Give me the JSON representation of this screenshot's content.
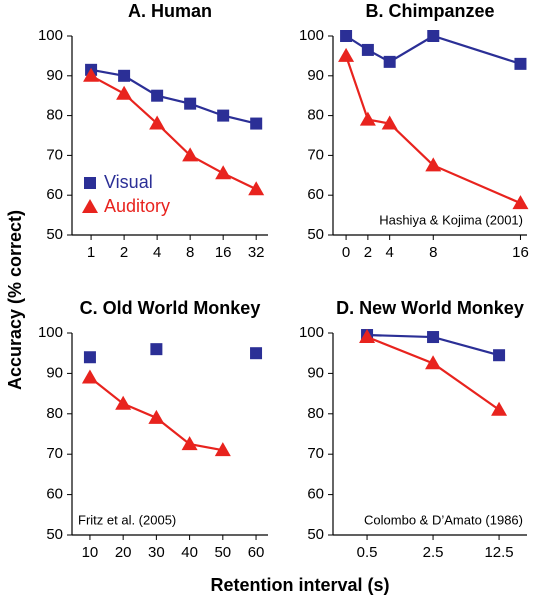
{
  "chart_data": [
    {
      "type": "line",
      "title": "A. Human",
      "xscale": "log",
      "x": [
        1,
        2,
        4,
        8,
        16,
        32
      ],
      "xlim": [
        0.67,
        41
      ],
      "xticks": [
        1,
        2,
        4,
        8,
        16,
        32
      ],
      "ylim": [
        50,
        100
      ],
      "yticks": [
        50,
        60,
        70,
        80,
        90,
        100
      ],
      "legend": "lower left",
      "series": [
        {
          "name": "Visual",
          "color": "#2b2f96",
          "marker": "square",
          "values": [
            91.5,
            90,
            85,
            83,
            80,
            78
          ]
        },
        {
          "name": "Auditory",
          "color": "#e8231e",
          "marker": "triangle",
          "values": [
            90,
            85.5,
            78,
            70,
            65.5,
            61.5
          ]
        }
      ]
    },
    {
      "type": "line",
      "title": "B. Chimpanzee",
      "xscale": "linear",
      "x": [
        0,
        2,
        4,
        8,
        16
      ],
      "xlim": [
        -1.2,
        16.6
      ],
      "xticks": [
        0,
        2,
        4,
        8,
        16
      ],
      "ylim": [
        50,
        100
      ],
      "yticks": [
        50,
        60,
        70,
        80,
        90,
        100
      ],
      "annotation": "Hashiya & Kojima (2001)",
      "annotation_position": "lower right",
      "series": [
        {
          "name": "Visual",
          "color": "#2b2f96",
          "marker": "square",
          "values": [
            100,
            96.5,
            93.5,
            100,
            93
          ]
        },
        {
          "name": "Auditory",
          "color": "#e8231e",
          "marker": "triangle",
          "values": [
            95,
            79,
            78,
            67.5,
            58
          ]
        }
      ]
    },
    {
      "type": "line",
      "title": "C. Old World Monkey",
      "xscale": "linear",
      "x": [
        10,
        20,
        30,
        40,
        50,
        60
      ],
      "xlim": [
        4.6,
        63.6
      ],
      "xticks": [
        10,
        20,
        30,
        40,
        50,
        60
      ],
      "ylim": [
        50,
        100
      ],
      "yticks": [
        50,
        60,
        70,
        80,
        90,
        100
      ],
      "annotation": "Fritz et al. (2005)",
      "annotation_position": "lower left",
      "series": [
        {
          "name": "Visual",
          "color": "#2b2f96",
          "marker": "square",
          "values": [
            94,
            null,
            96,
            null,
            null,
            95
          ]
        },
        {
          "name": "Auditory",
          "color": "#e8231e",
          "marker": "triangle",
          "values": [
            89,
            82.5,
            79,
            72.5,
            71,
            null
          ]
        }
      ]
    },
    {
      "type": "line",
      "title": "D. New World Monkey",
      "xscale": "log",
      "x": [
        0.5,
        2.5,
        12.5
      ],
      "xlim": [
        0.218,
        24.7
      ],
      "xticks": [
        0.5,
        2.5,
        12.5
      ],
      "ylim": [
        50,
        100
      ],
      "yticks": [
        50,
        60,
        70,
        80,
        90,
        100
      ],
      "annotation": "Colombo & D’Amato (1986)",
      "annotation_position": "lower right",
      "series": [
        {
          "name": "Visual",
          "color": "#2b2f96",
          "marker": "square",
          "values": [
            99.5,
            99,
            94.5
          ]
        },
        {
          "name": "Auditory",
          "color": "#e8231e",
          "marker": "triangle",
          "values": [
            99,
            92.5,
            81
          ]
        }
      ]
    }
  ],
  "shared_ylabel": "Accuracy (% correct)",
  "shared_xlabel": "Retention interval (s)"
}
